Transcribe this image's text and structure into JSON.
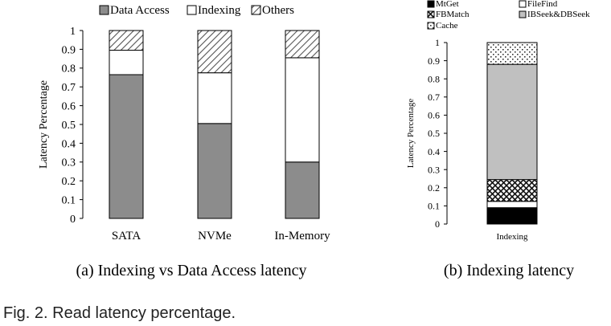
{
  "chart_data": [
    {
      "type": "bar",
      "stacked": true,
      "title": "",
      "xlabel": "",
      "ylabel": "Latency Percentage",
      "ylim": [
        0,
        1
      ],
      "yticks": [
        "0",
        "0.1",
        "0.2",
        "0.3",
        "0.4",
        "0.5",
        "0.6",
        "0.7",
        "0.8",
        "0.9",
        "1"
      ],
      "categories": [
        "SATA",
        "NVMe",
        "In-Memory"
      ],
      "series": [
        {
          "name": "Data Access",
          "values": [
            0.765,
            0.505,
            0.3
          ],
          "pattern": "solid-gray"
        },
        {
          "name": "Indexing",
          "values": [
            0.13,
            0.27,
            0.555
          ],
          "pattern": "white"
        },
        {
          "name": "Others",
          "values": [
            0.105,
            0.225,
            0.145
          ],
          "pattern": "diagonal-hatch"
        }
      ],
      "legend": "top",
      "caption": "(a) Indexing vs Data Access latency"
    },
    {
      "type": "bar",
      "stacked": true,
      "title": "",
      "xlabel": "",
      "ylabel": "Latency Percentage",
      "ylim": [
        0,
        1
      ],
      "yticks": [
        "0",
        "0.1",
        "0.2",
        "0.3",
        "0.4",
        "0.5",
        "0.6",
        "0.7",
        "0.8",
        "0.9",
        "1"
      ],
      "categories": [
        "Indexing"
      ],
      "series": [
        {
          "name": "MtGet",
          "values": [
            0.09
          ],
          "pattern": "solid-black"
        },
        {
          "name": "FileFind",
          "values": [
            0.035
          ],
          "pattern": "white"
        },
        {
          "name": "FBMatch",
          "values": [
            0.12
          ],
          "pattern": "cross-hatch"
        },
        {
          "name": "IBSeek&DBSeek",
          "values": [
            0.635
          ],
          "pattern": "solid-lightgray"
        },
        {
          "name": "Cache",
          "values": [
            0.12
          ],
          "pattern": "dots"
        }
      ],
      "legend": "top",
      "caption": "(b) Indexing latency"
    }
  ],
  "figure_caption": "Fig. 2. Read latency percentage.",
  "colors": {
    "data_access": "#8c8c8c",
    "ibseek": "#c0c0c0",
    "mtget": "#000000",
    "white": "#ffffff"
  }
}
